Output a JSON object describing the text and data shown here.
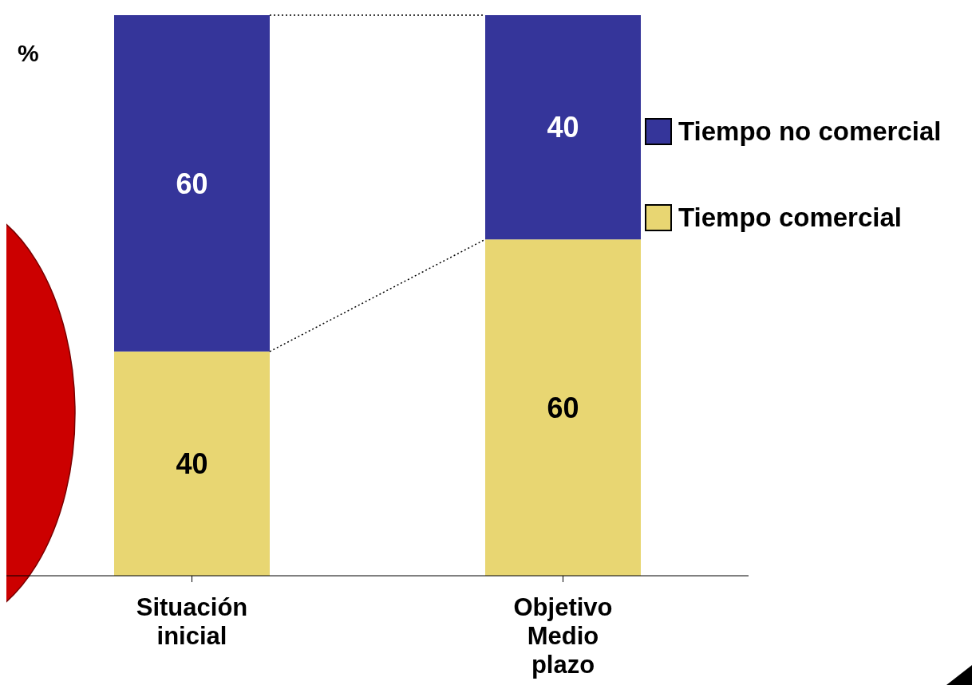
{
  "chart_data": {
    "type": "bar",
    "stacked": true,
    "ylabel": "%",
    "categories": [
      "Situación inicial",
      "Objetivo Medio plazo"
    ],
    "series": [
      {
        "name": "Tiempo comercial",
        "color": "#e8d672",
        "values": [
          40,
          60
        ]
      },
      {
        "name": "Tiempo no comercial",
        "color": "#35359a",
        "values": [
          60,
          40
        ]
      }
    ],
    "ylim": [
      0,
      100
    ],
    "tick_labels": "x",
    "data_labels": true,
    "legend": "right"
  }
}
